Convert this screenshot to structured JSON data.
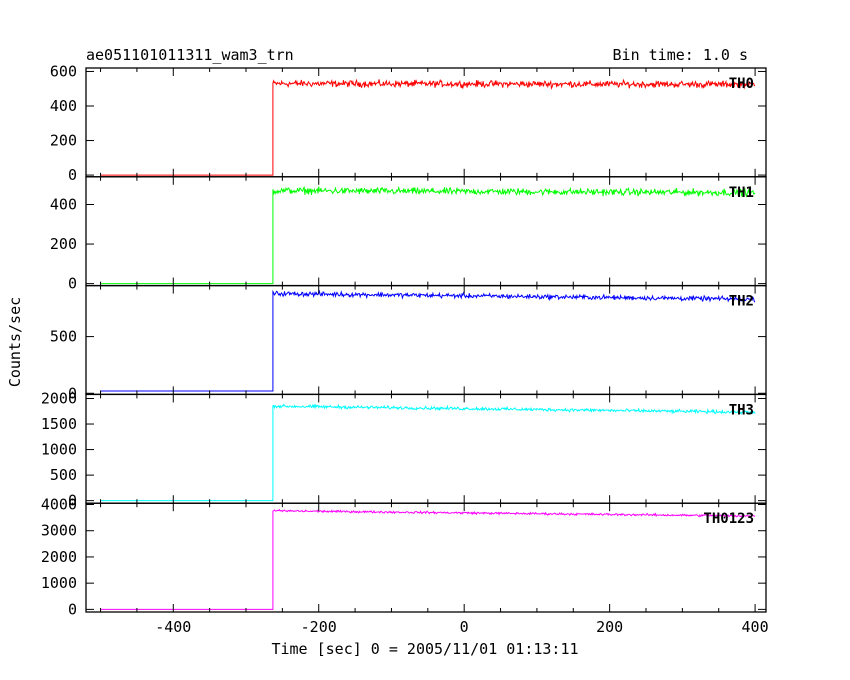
{
  "header": {
    "left_title": "ae051101011311_wam3_trn",
    "right_title": "Bin time: 1.0 s"
  },
  "chart_data": {
    "type": "line",
    "xlabel": "Time [sec] 0 = 2005/11/01 01:13:11",
    "ylabel": "Counts/sec",
    "xlim": [
      -520,
      415
    ],
    "xticks": [
      -400,
      -200,
      0,
      200,
      400
    ],
    "x_start": -500,
    "x_end": 400,
    "step_time": -263,
    "panels": [
      {
        "name": "TH0",
        "color": "#ff0000",
        "ylim": [
          -10,
          620
        ],
        "yticks": [
          0,
          200,
          400,
          600
        ],
        "pre_level": 0,
        "post_level": 530,
        "noise": 28,
        "drift": -5
      },
      {
        "name": "TH1",
        "color": "#00ff00",
        "ylim": [
          -10,
          540
        ],
        "yticks": [
          0,
          200,
          400
        ],
        "pre_level": 0,
        "post_level": 470,
        "noise": 25,
        "drift": -10
      },
      {
        "name": "TH2",
        "color": "#0000ff",
        "ylim": [
          -10,
          950
        ],
        "yticks": [
          0,
          500
        ],
        "pre_level": 20,
        "post_level": 880,
        "noise": 30,
        "drift": -50
      },
      {
        "name": "TH3",
        "color": "#00ffff",
        "ylim": [
          -50,
          2080
        ],
        "yticks": [
          0,
          500,
          1000,
          1500,
          2000
        ],
        "pre_level": 0,
        "post_level": 1850,
        "noise": 45,
        "drift": -120
      },
      {
        "name": "TH0123",
        "color": "#ff00ff",
        "ylim": [
          -100,
          4050
        ],
        "yticks": [
          0,
          1000,
          2000,
          3000,
          4000
        ],
        "pre_level": 0,
        "post_level": 3760,
        "noise": 60,
        "drift": -200
      }
    ]
  }
}
